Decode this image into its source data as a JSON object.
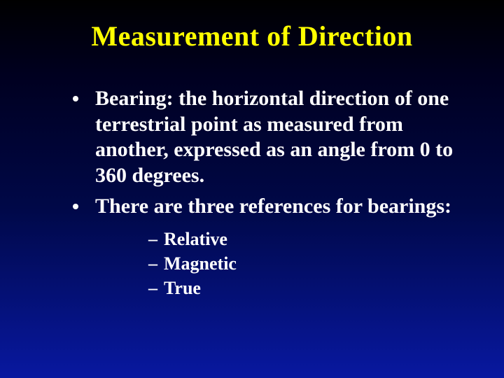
{
  "slide": {
    "title": "Measurement of Direction",
    "title_color": "#ffff00",
    "text_color": "#ffffff",
    "background_gradient": [
      "#000000",
      "#000020",
      "#000848",
      "#0818a0"
    ],
    "font_family": "Times New Roman",
    "bullets": [
      {
        "text": "Bearing:  the horizontal direction of one terrestrial point as measured from another, expressed as an angle from 0 to 360 degrees."
      },
      {
        "text": "There are three references for bearings:",
        "sub": [
          "Relative",
          "Magnetic",
          "True"
        ]
      }
    ],
    "title_fontsize": 40,
    "bullet_fontsize": 30,
    "sub_fontsize": 26
  }
}
